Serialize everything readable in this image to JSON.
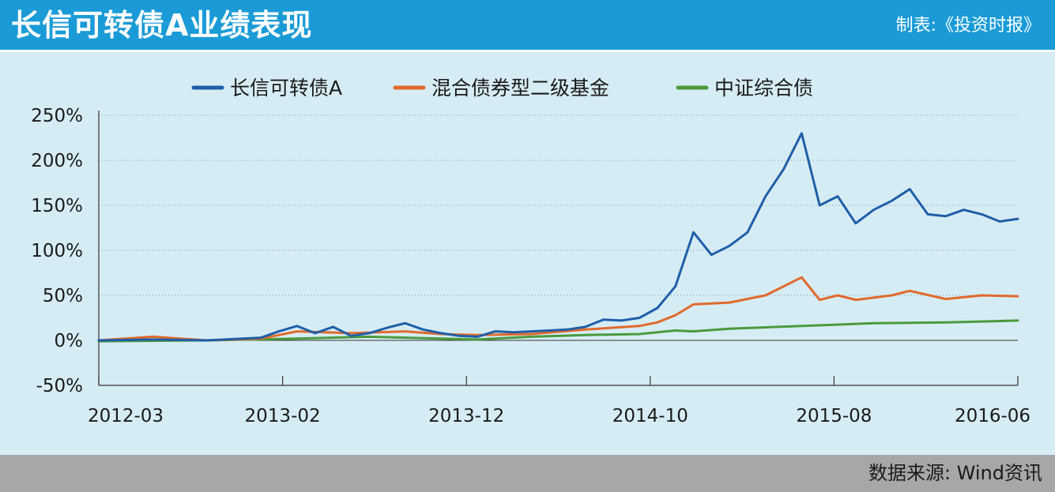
{
  "header": {
    "title": "长信可转债A业绩表现",
    "credit": "制表:《投资时报》"
  },
  "footer": {
    "source": "数据来源: Wind资讯"
  },
  "colors": {
    "header_bg": "#1a9bd7",
    "plot_bg": "#d6ecf5",
    "footer_bg": "#a5a7a9"
  },
  "chart_data": {
    "type": "line",
    "title": "长信可转债A业绩表现",
    "xlabel": "",
    "ylabel": "",
    "x_tick_labels": [
      "2012-03",
      "2013-02",
      "2013-12",
      "2014-10",
      "2015-08",
      "2016-06"
    ],
    "x_range_months": [
      "2012-03",
      "2016-06"
    ],
    "y_ticks": [
      -50,
      0,
      50,
      100,
      150,
      200,
      250
    ],
    "y_tick_labels": [
      "-50%",
      "0%",
      "50%",
      "100%",
      "150%",
      "200%",
      "250%"
    ],
    "ylim": [
      -50,
      250
    ],
    "grid": "horizontal dotted",
    "legend_position": "top",
    "series": [
      {
        "name": "长信可转债A",
        "color": "#1f5fa8",
        "points": [
          [
            "2012-03",
            0
          ],
          [
            "2012-06",
            1
          ],
          [
            "2012-09",
            0
          ],
          [
            "2012-12",
            3
          ],
          [
            "2013-01",
            10
          ],
          [
            "2013-02",
            16
          ],
          [
            "2013-03",
            8
          ],
          [
            "2013-04",
            15
          ],
          [
            "2013-05",
            5
          ],
          [
            "2013-06",
            8
          ],
          [
            "2013-07",
            14
          ],
          [
            "2013-08",
            19
          ],
          [
            "2013-09",
            12
          ],
          [
            "2013-10",
            8
          ],
          [
            "2013-11",
            5
          ],
          [
            "2013-12",
            4
          ],
          [
            "2014-01",
            10
          ],
          [
            "2014-02",
            9
          ],
          [
            "2014-03",
            10
          ],
          [
            "2014-04",
            11
          ],
          [
            "2014-05",
            12
          ],
          [
            "2014-06",
            15
          ],
          [
            "2014-07",
            23
          ],
          [
            "2014-08",
            22
          ],
          [
            "2014-09",
            25
          ],
          [
            "2014-10",
            36
          ],
          [
            "2014-11",
            60
          ],
          [
            "2014-12",
            120
          ],
          [
            "2015-01",
            95
          ],
          [
            "2015-02",
            105
          ],
          [
            "2015-03",
            120
          ],
          [
            "2015-04",
            160
          ],
          [
            "2015-05",
            190
          ],
          [
            "2015-06",
            230
          ],
          [
            "2015-07",
            150
          ],
          [
            "2015-08",
            160
          ],
          [
            "2015-09",
            130
          ],
          [
            "2015-10",
            145
          ],
          [
            "2015-11",
            155
          ],
          [
            "2015-12",
            168
          ],
          [
            "2016-01",
            140
          ],
          [
            "2016-02",
            138
          ],
          [
            "2016-03",
            145
          ],
          [
            "2016-04",
            140
          ],
          [
            "2016-05",
            132
          ],
          [
            "2016-06",
            135
          ]
        ]
      },
      {
        "name": "混合债券型二级基金",
        "color": "#e06a2c",
        "points": [
          [
            "2012-03",
            0
          ],
          [
            "2012-06",
            4
          ],
          [
            "2012-09",
            0
          ],
          [
            "2012-12",
            2
          ],
          [
            "2013-01",
            6
          ],
          [
            "2013-02",
            10
          ],
          [
            "2013-05",
            8
          ],
          [
            "2013-08",
            10
          ],
          [
            "2013-10",
            7
          ],
          [
            "2013-12",
            6
          ],
          [
            "2014-03",
            7
          ],
          [
            "2014-06",
            12
          ],
          [
            "2014-09",
            16
          ],
          [
            "2014-10",
            20
          ],
          [
            "2014-11",
            28
          ],
          [
            "2014-12",
            40
          ],
          [
            "2015-02",
            42
          ],
          [
            "2015-04",
            50
          ],
          [
            "2015-06",
            70
          ],
          [
            "2015-07",
            45
          ],
          [
            "2015-08",
            50
          ],
          [
            "2015-09",
            45
          ],
          [
            "2015-11",
            50
          ],
          [
            "2015-12",
            55
          ],
          [
            "2016-02",
            46
          ],
          [
            "2016-04",
            50
          ],
          [
            "2016-06",
            49
          ]
        ]
      },
      {
        "name": "中证综合债",
        "color": "#4a9a3c",
        "points": [
          [
            "2012-03",
            -1
          ],
          [
            "2012-09",
            0
          ],
          [
            "2013-02",
            2
          ],
          [
            "2013-06",
            4
          ],
          [
            "2013-12",
            1
          ],
          [
            "2014-03",
            4
          ],
          [
            "2014-06",
            6
          ],
          [
            "2014-09",
            7
          ],
          [
            "2014-10",
            9
          ],
          [
            "2014-11",
            11
          ],
          [
            "2014-12",
            10
          ],
          [
            "2015-02",
            13
          ],
          [
            "2015-06",
            16
          ],
          [
            "2015-10",
            19
          ],
          [
            "2016-02",
            20
          ],
          [
            "2016-06",
            22
          ]
        ]
      }
    ]
  }
}
